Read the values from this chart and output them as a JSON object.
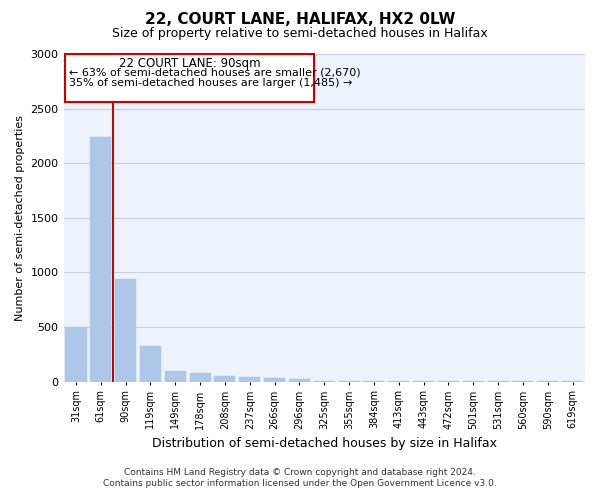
{
  "title": "22, COURT LANE, HALIFAX, HX2 0LW",
  "subtitle": "Size of property relative to semi-detached houses in Halifax",
  "xlabel": "Distribution of semi-detached houses by size in Halifax",
  "ylabel": "Number of semi-detached properties",
  "footer_line1": "Contains HM Land Registry data © Crown copyright and database right 2024.",
  "footer_line2": "Contains public sector information licensed under the Open Government Licence v3.0.",
  "annotation_title": "22 COURT LANE: 90sqm",
  "annotation_line1": "← 63% of semi-detached houses are smaller (2,670)",
  "annotation_line2": "35% of semi-detached houses are larger (1,485) →",
  "bar_labels": [
    "31sqm",
    "61sqm",
    "90sqm",
    "119sqm",
    "149sqm",
    "178sqm",
    "208sqm",
    "237sqm",
    "266sqm",
    "296sqm",
    "325sqm",
    "355sqm",
    "384sqm",
    "413sqm",
    "443sqm",
    "472sqm",
    "501sqm",
    "531sqm",
    "560sqm",
    "590sqm",
    "619sqm"
  ],
  "bar_values": [
    500,
    2240,
    940,
    325,
    100,
    80,
    55,
    40,
    30,
    25,
    5,
    5,
    5,
    5,
    5,
    5,
    5,
    5,
    5,
    5,
    5
  ],
  "bar_color": "#aec6e8",
  "vline_after_bar": 1,
  "vline_color": "#aa1111",
  "ylim": [
    0,
    3000
  ],
  "yticks": [
    0,
    500,
    1000,
    1500,
    2000,
    2500,
    3000
  ],
  "grid_color": "#c8cfe0",
  "bg_color": "#eef2fa",
  "annotation_box_edgecolor": "#cc0000",
  "annotation_box_facecolor": "#ffffff"
}
